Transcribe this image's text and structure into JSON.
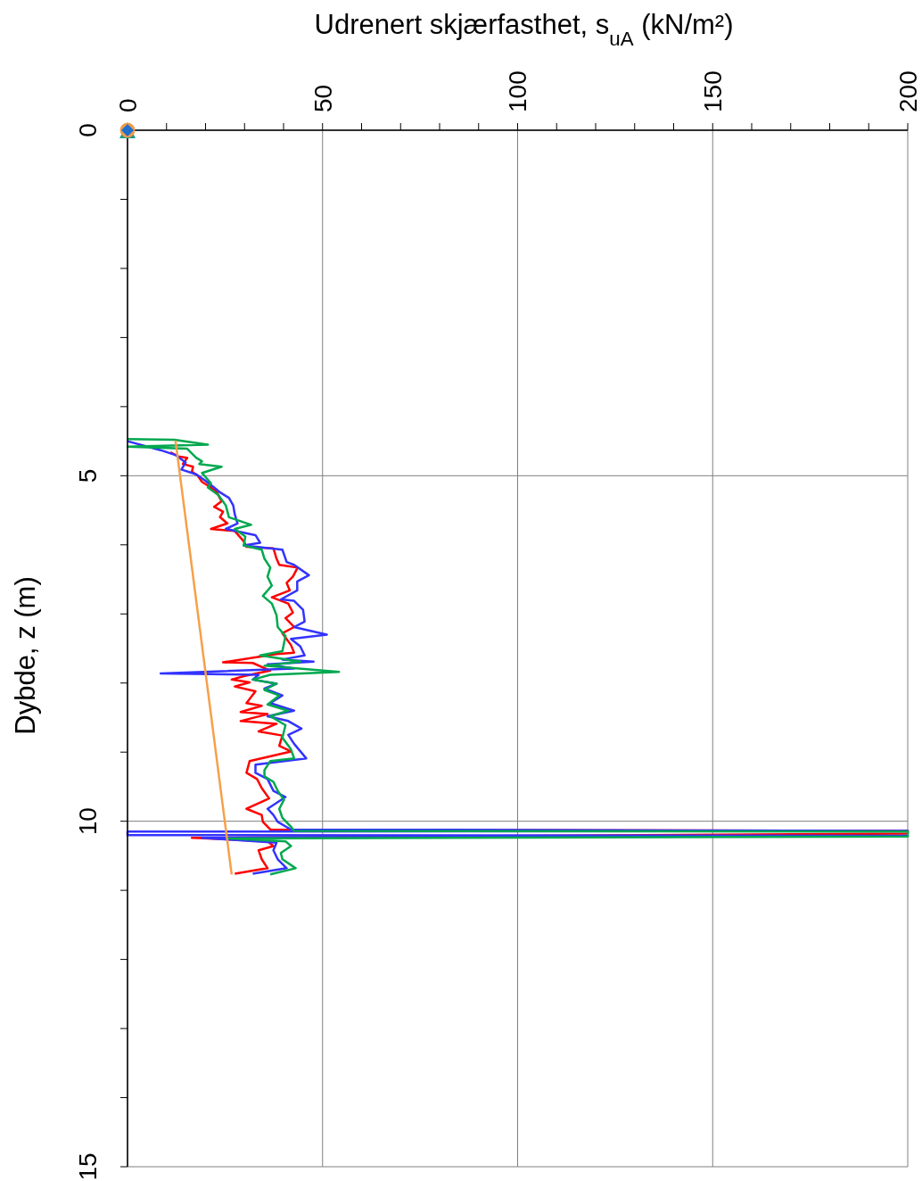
{
  "chart_data": {
    "type": "line",
    "xlabel": "Udrenert skjærfasthet, s$_{uA}$ (kN/m²)",
    "ylabel": "Dybde, z (m)",
    "xlim": [
      0,
      200
    ],
    "ylim": [
      15,
      0
    ],
    "xticks": [
      0,
      {
        "value": 10,
        "label": null
      },
      {
        "value": 20,
        "label": null
      },
      {
        "value": 30,
        "label": null
      },
      {
        "value": 40,
        "label": null
      },
      50,
      {
        "value": 60,
        "label": null
      },
      {
        "value": 70,
        "label": null
      },
      {
        "value": 80,
        "label": null
      },
      {
        "value": 90,
        "label": null
      },
      100,
      {
        "value": 110,
        "label": null
      },
      {
        "value": 120,
        "label": null
      },
      {
        "value": 130,
        "label": null
      },
      {
        "value": 140,
        "label": null
      },
      150,
      {
        "value": 160,
        "label": null
      },
      {
        "value": 170,
        "label": null
      },
      {
        "value": 180,
        "label": null
      },
      {
        "value": 190,
        "label": null
      },
      200
    ],
    "yticks": [
      0,
      {
        "value": 1,
        "label": null
      },
      {
        "value": 2,
        "label": null
      },
      {
        "value": 3,
        "label": null
      },
      {
        "value": 4,
        "label": null
      },
      5,
      {
        "value": 6,
        "label": null
      },
      {
        "value": 7,
        "label": null
      },
      {
        "value": 8,
        "label": null
      },
      {
        "value": 9,
        "label": null
      },
      10,
      {
        "value": 11,
        "label": null
      },
      {
        "value": 12,
        "label": null
      },
      {
        "value": 13,
        "label": null
      },
      {
        "value": 14,
        "label": null
      },
      15
    ],
    "grid": true,
    "series": [
      {
        "color": "#ff0000",
        "x": [
          11.0,
          13.0,
          15.3,
          14.2,
          16.8,
          16.5,
          18.0,
          19.1,
          21.4,
          22.9,
          24.1,
          22.2,
          24.5,
          23.7,
          25.6,
          21.4,
          27.5,
          29.8,
          30.5,
          37.4,
          38.2,
          38.9,
          43.6,
          42.4,
          40.8,
          41.6,
          37.0,
          41.2,
          42.4,
          40.5,
          42.7,
          39.7,
          41.9,
          42.7,
          38.2,
          24.5,
          32.1,
          36.6,
          29.8,
          26.7,
          31.3,
          27.5,
          32.8,
          30.5,
          34.4,
          29.0,
          35.9,
          29.0,
          38.2,
          33.6,
          39.7,
          38.9,
          41.9,
          31.3,
          30.5,
          33.2,
          34.4,
          36.3,
          30.5,
          34.4,
          34.7,
          36.6,
          200,
          200,
          16.5,
          35.9,
          37.4,
          33.6,
          34.4,
          35.9,
          27.5
        ],
        "values": [
          4.66,
          4.72,
          4.74,
          4.83,
          4.87,
          4.94,
          5.0,
          5.09,
          5.17,
          5.24,
          5.37,
          5.45,
          5.52,
          5.6,
          5.69,
          5.77,
          5.8,
          5.95,
          6.03,
          6.05,
          6.2,
          6.29,
          6.33,
          6.46,
          6.55,
          6.66,
          6.76,
          6.85,
          6.98,
          7.06,
          7.19,
          7.28,
          7.45,
          7.56,
          7.58,
          7.7,
          7.71,
          7.82,
          7.9,
          7.95,
          7.99,
          8.05,
          8.12,
          8.29,
          8.33,
          8.42,
          8.45,
          8.55,
          8.59,
          8.7,
          8.76,
          8.91,
          8.99,
          9.13,
          9.3,
          9.39,
          9.52,
          9.67,
          9.82,
          9.91,
          10.01,
          10.12,
          10.14,
          10.18,
          10.24,
          10.29,
          10.36,
          10.42,
          10.55,
          10.68,
          10.76
        ]
      },
      {
        "color": "#3333ff",
        "x": [
          0,
          8.5,
          12.3,
          14.9,
          13.8,
          17.6,
          19.9,
          22.2,
          23.7,
          26.0,
          27.1,
          27.5,
          28.2,
          25.2,
          32.8,
          34.0,
          29.8,
          39.7,
          40.8,
          42.7,
          46.5,
          43.5,
          43.5,
          39.3,
          42.7,
          45.0,
          45.4,
          42.7,
          51.1,
          41.9,
          44.3,
          45.4,
          39.7,
          47.7,
          35.9,
          42.7,
          8.5,
          33.6,
          32.1,
          38.2,
          35.1,
          39.7,
          36.6,
          42.7,
          35.9,
          41.2,
          44.6,
          41.2,
          42.7,
          45.8,
          32.8,
          32.8,
          35.9,
          37.4,
          40.5,
          35.9,
          37.4,
          38.5,
          41.9,
          200,
          0,
          0,
          200,
          19.1,
          38.2,
          37.4,
          38.5,
          40.8,
          32.1
        ],
        "values": [
          4.5,
          4.63,
          4.7,
          4.81,
          4.91,
          4.98,
          5.07,
          5.17,
          5.24,
          5.32,
          5.43,
          5.56,
          5.69,
          5.77,
          5.86,
          5.97,
          6.01,
          6.07,
          6.25,
          6.29,
          6.44,
          6.53,
          6.66,
          6.79,
          6.81,
          6.94,
          7.11,
          7.19,
          7.3,
          7.36,
          7.47,
          7.6,
          7.66,
          7.69,
          7.73,
          7.79,
          7.86,
          7.88,
          7.95,
          8.01,
          8.08,
          8.18,
          8.29,
          8.4,
          8.48,
          8.55,
          8.66,
          8.75,
          8.88,
          9.09,
          9.18,
          9.3,
          9.39,
          9.56,
          9.65,
          9.82,
          9.91,
          10.01,
          10.12,
          10.14,
          10.15,
          10.2,
          10.21,
          10.24,
          10.31,
          10.42,
          10.55,
          10.68,
          10.76
        ]
      },
      {
        "color": "#00a84f",
        "x": [
          0,
          12.0,
          20.6,
          0,
          15.3,
          17.6,
          19.1,
          18.4,
          24.1,
          19.1,
          21.4,
          20.6,
          23.3,
          25.2,
          26.0,
          31.7,
          27.5,
          30.2,
          29.8,
          34.4,
          35.1,
          36.6,
          35.9,
          37.0,
          34.7,
          37.0,
          38.2,
          38.5,
          40.5,
          39.7,
          34.0,
          44.3,
          35.1,
          54.2,
          36.6,
          32.1,
          38.2,
          35.1,
          38.9,
          35.9,
          41.2,
          36.6,
          40.5,
          39.7,
          41.9,
          42.7,
          36.6,
          35.1,
          35.1,
          37.4,
          38.5,
          40.1,
          38.9,
          39.7,
          41.9,
          42.7,
          200,
          200,
          26.0,
          40.5,
          41.9,
          39.3,
          39.7,
          43.1,
          36.6
        ],
        "values": [
          4.47,
          4.48,
          4.55,
          4.58,
          4.61,
          4.74,
          4.79,
          4.83,
          4.87,
          4.96,
          5.11,
          5.17,
          5.28,
          5.43,
          5.6,
          5.71,
          5.77,
          5.88,
          6.01,
          6.07,
          6.2,
          6.33,
          6.46,
          6.59,
          6.74,
          6.85,
          7.02,
          7.19,
          7.32,
          7.54,
          7.6,
          7.69,
          7.75,
          7.84,
          7.88,
          7.95,
          8.01,
          8.1,
          8.18,
          8.31,
          8.4,
          8.48,
          8.61,
          8.79,
          8.96,
          9.09,
          9.13,
          9.26,
          9.35,
          9.43,
          9.56,
          9.69,
          9.82,
          9.95,
          10.08,
          10.14,
          10.15,
          10.22,
          10.25,
          10.29,
          10.36,
          10.46,
          10.55,
          10.68,
          10.77
        ]
      },
      {
        "color": "#f5a04a",
        "x": [
          12.3,
          26.7
        ],
        "values": [
          4.49,
          10.77
        ]
      },
      {
        "type": "scatter",
        "marker": "triangle",
        "color": "#159a8c",
        "x": [
          0
        ],
        "values": [
          0
        ]
      },
      {
        "type": "scatter",
        "marker": "circle",
        "color": "#f29a4a",
        "x": [
          0
        ],
        "values": [
          0
        ]
      },
      {
        "type": "scatter",
        "marker": "diamond",
        "color": "#1e6fd0",
        "x": [
          0
        ],
        "values": [
          0
        ]
      }
    ]
  }
}
